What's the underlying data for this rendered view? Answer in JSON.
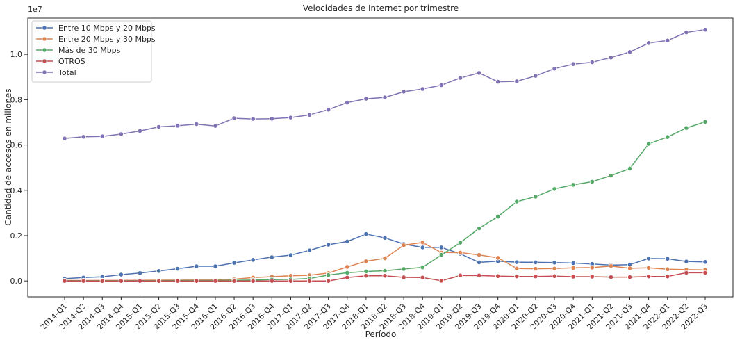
{
  "chart_data": {
    "type": "line",
    "title": "Velocidades de Internet por trimestre",
    "xlabel": "Período",
    "ylabel": "Cantidad de accesos en millones",
    "y_offset_label": "1e7",
    "ylim": [
      -700000,
      11600000
    ],
    "yticks": [
      0,
      2000000,
      4000000,
      6000000,
      8000000,
      10000000
    ],
    "ytick_labels": [
      "0.0",
      "0.2",
      "0.4",
      "0.6",
      "0.8",
      "1.0"
    ],
    "grid": false,
    "legend_position": "upper-left",
    "categories": [
      "2014-Q1",
      "2014-Q2",
      "2014-Q3",
      "2014-Q4",
      "2015-Q1",
      "2015-Q2",
      "2015-Q3",
      "2015-Q4",
      "2016-Q1",
      "2016-Q2",
      "2016-Q3",
      "2016-Q4",
      "2017-Q1",
      "2017-Q2",
      "2017-Q3",
      "2017-Q4",
      "2018-Q1",
      "2018-Q2",
      "2018-Q3",
      "2018-Q4",
      "2019-Q1",
      "2019-Q2",
      "2019-Q3",
      "2019-Q4",
      "2020-Q1",
      "2020-Q2",
      "2020-Q3",
      "2020-Q4",
      "2021-Q1",
      "2021-Q2",
      "2021-Q3",
      "2021-Q4",
      "2022-Q1",
      "2022-Q2",
      "2022-Q3"
    ],
    "series": [
      {
        "name": "Entre 10 Mbps y 20 Mbps",
        "color": "#4c72b0",
        "values": [
          100000,
          150000,
          180000,
          280000,
          350000,
          440000,
          540000,
          650000,
          650000,
          800000,
          930000,
          1050000,
          1140000,
          1350000,
          1600000,
          1740000,
          2070000,
          1900000,
          1630000,
          1480000,
          1480000,
          1200000,
          820000,
          870000,
          830000,
          820000,
          810000,
          790000,
          750000,
          700000,
          720000,
          990000,
          980000,
          860000,
          840000
        ]
      },
      {
        "name": "Entre 20 Mbps y 30 Mbps",
        "color": "#dd8452",
        "values": [
          20000,
          20000,
          25000,
          25000,
          30000,
          35000,
          35000,
          40000,
          45000,
          80000,
          150000,
          190000,
          230000,
          250000,
          350000,
          620000,
          870000,
          1000000,
          1580000,
          1700000,
          1250000,
          1250000,
          1150000,
          1020000,
          550000,
          540000,
          550000,
          580000,
          590000,
          660000,
          560000,
          580000,
          520000,
          500000,
          490000
        ]
      },
      {
        "name": "Más de 30 Mbps",
        "color": "#55a868",
        "values": [
          5000,
          10000,
          10000,
          10000,
          10000,
          15000,
          20000,
          20000,
          20000,
          30000,
          40000,
          60000,
          70000,
          110000,
          260000,
          360000,
          420000,
          450000,
          530000,
          600000,
          1150000,
          1690000,
          2320000,
          2840000,
          3500000,
          3720000,
          4060000,
          4240000,
          4380000,
          4650000,
          4960000,
          6050000,
          6350000,
          6750000,
          7020000
        ]
      },
      {
        "name": "OTROS",
        "color": "#c44e52",
        "values": [
          0,
          0,
          0,
          0,
          0,
          0,
          0,
          0,
          0,
          0,
          0,
          0,
          0,
          0,
          0,
          150000,
          230000,
          230000,
          160000,
          150000,
          10000,
          240000,
          240000,
          210000,
          200000,
          200000,
          210000,
          190000,
          190000,
          170000,
          170000,
          200000,
          200000,
          360000,
          360000
        ]
      },
      {
        "name": "Total",
        "color": "#8172b3",
        "values": [
          6290000,
          6360000,
          6380000,
          6480000,
          6620000,
          6800000,
          6850000,
          6920000,
          6840000,
          7180000,
          7150000,
          7160000,
          7210000,
          7330000,
          7560000,
          7870000,
          8040000,
          8100000,
          8350000,
          8470000,
          8640000,
          8960000,
          9180000,
          8790000,
          8810000,
          9050000,
          9370000,
          9570000,
          9650000,
          9860000,
          10100000,
          10500000,
          10610000,
          10970000,
          11090000
        ]
      }
    ]
  }
}
